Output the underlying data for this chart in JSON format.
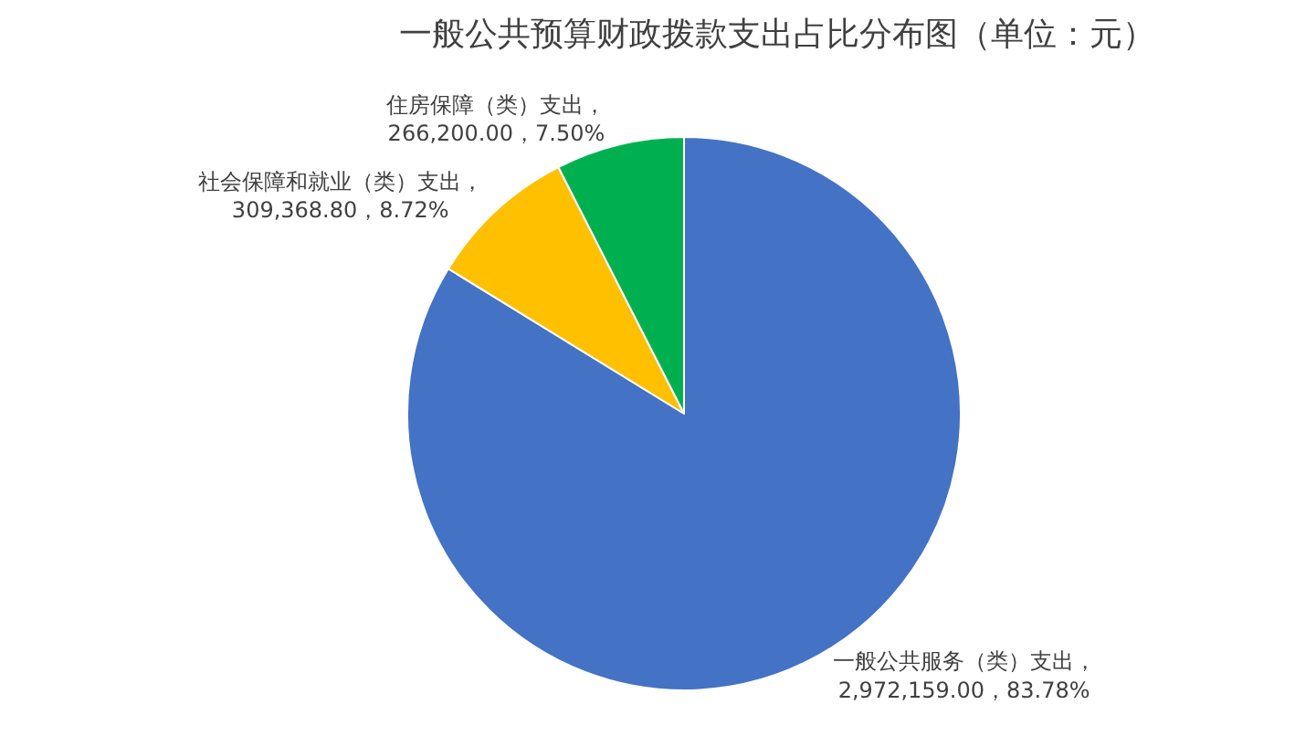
{
  "chart_data": {
    "type": "pie",
    "title": "一般公共预算财政拨款支出占比分布图（单位：元）",
    "categories": [
      "一般公共服务（类）支出",
      "社会保障和就业（类）支出",
      "住房保障（类）支出"
    ],
    "values": [
      2972159.0,
      309368.8,
      266200.0
    ],
    "value_labels": [
      "，2,972,159.00，83.78%",
      "，309,368.80，8.72%",
      "，266,200.00，7.50%"
    ],
    "colors": [
      "#4472c4",
      "#ffc000",
      "#00b050"
    ],
    "legend": false
  }
}
